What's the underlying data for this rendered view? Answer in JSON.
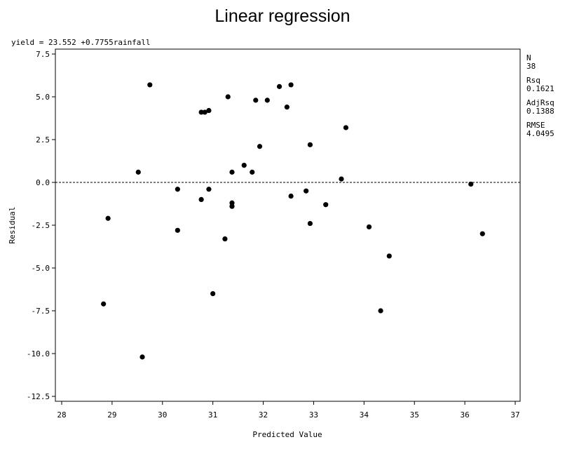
{
  "chart_data": {
    "type": "scatter",
    "title": "Linear regression",
    "equation": "yield = 23.552 +0.7755rainfall",
    "xlabel": "Predicted Value",
    "ylabel": "Residual",
    "xlim": [
      28,
      37
    ],
    "ylim": [
      -12.5,
      7.5
    ],
    "x_ticks": [
      "28",
      "29",
      "30",
      "31",
      "32",
      "33",
      "34",
      "35",
      "36",
      "37"
    ],
    "y_ticks": [
      "7.5",
      "5.0",
      "2.5",
      "0.0",
      "-2.5",
      "-5.0",
      "-7.5",
      "-10.0",
      "-12.5"
    ],
    "reference_line_y": 0,
    "stats": [
      {
        "label": "N",
        "value": "38"
      },
      {
        "label": "Rsq",
        "value": "0.1621"
      },
      {
        "label": "AdjRsq",
        "value": "0.1388"
      },
      {
        "label": "RMSE",
        "value": "4.0495"
      }
    ],
    "x": [
      28.83,
      28.92,
      29.52,
      29.6,
      29.75,
      30.3,
      30.3,
      30.77,
      30.77,
      30.84,
      30.92,
      30.92,
      31.0,
      31.24,
      31.3,
      31.38,
      31.38,
      31.38,
      31.62,
      31.78,
      31.85,
      31.93,
      32.08,
      32.32,
      32.47,
      32.55,
      32.55,
      32.85,
      32.93,
      32.93,
      33.24,
      33.55,
      33.64,
      34.1,
      34.33,
      34.5,
      36.12,
      36.35
    ],
    "y": [
      -7.1,
      -2.1,
      0.6,
      -10.2,
      5.7,
      -0.4,
      -2.8,
      4.1,
      -1.0,
      4.1,
      4.2,
      -0.4,
      -6.5,
      -3.3,
      5.0,
      0.6,
      -1.2,
      -1.4,
      1.0,
      0.6,
      4.8,
      2.1,
      4.8,
      5.6,
      4.4,
      5.7,
      -0.8,
      -0.5,
      2.2,
      -2.4,
      -1.3,
      0.2,
      3.2,
      -2.6,
      -7.5,
      -4.3,
      -0.1,
      -3.0
    ]
  }
}
